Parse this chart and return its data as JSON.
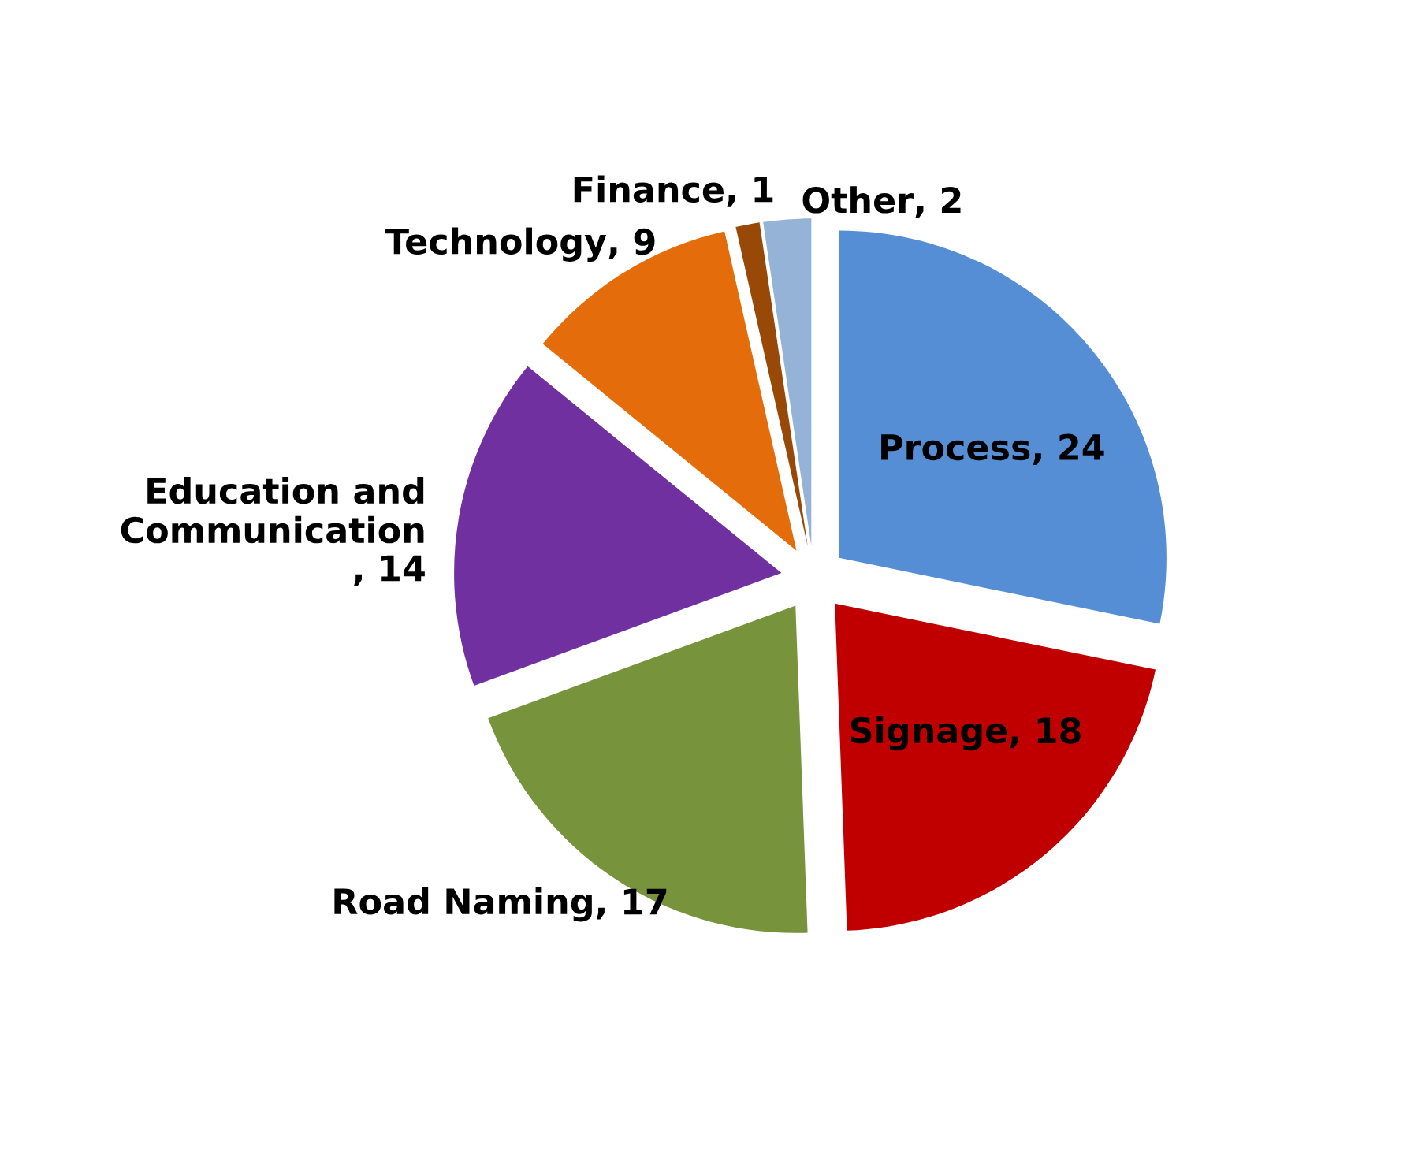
{
  "chart_data": {
    "type": "pie",
    "categories": [
      "Process",
      "Signage",
      "Road Naming",
      "Education and Communication",
      "Technology",
      "Finance",
      "Other"
    ],
    "values": [
      24,
      18,
      17,
      14,
      9,
      1,
      2
    ],
    "colors": [
      "#558ed5",
      "#c00000",
      "#77933c",
      "#7030a0",
      "#e46c0a",
      "#984807",
      "#95b3d7"
    ],
    "value_labels": [
      ", 24",
      ", 18",
      ", 17",
      ", 14",
      ", 9",
      ", 1",
      ", 2"
    ]
  }
}
